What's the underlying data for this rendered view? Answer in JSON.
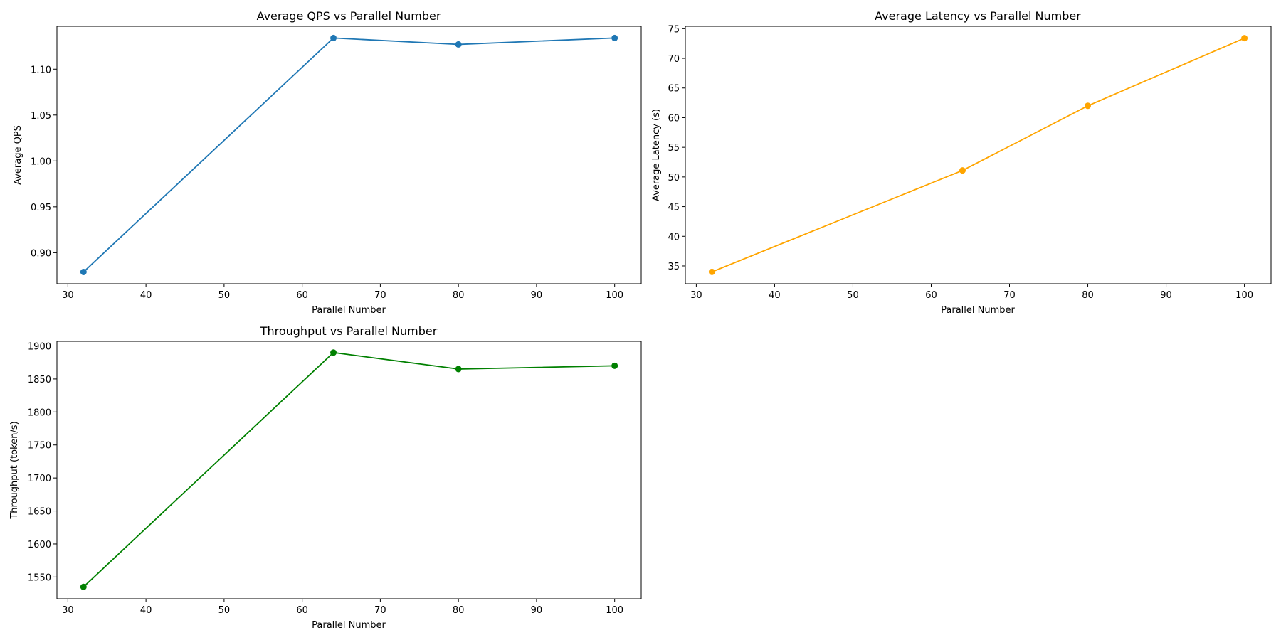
{
  "chart_data": [
    {
      "type": "line",
      "title": "Average QPS vs Parallel Number",
      "xlabel": "Parallel Number",
      "ylabel": "Average QPS",
      "x": [
        32,
        64,
        80,
        100
      ],
      "series": [
        {
          "values": [
            0.879,
            1.134,
            1.127,
            1.134
          ],
          "color": "#1f77b4",
          "marker": "circle"
        }
      ],
      "xlim": [
        28.6,
        103.4
      ],
      "ylim": [
        0.8662,
        1.1467
      ],
      "xticks": [
        30,
        40,
        50,
        60,
        70,
        80,
        90,
        100
      ],
      "yticks": [
        0.9,
        0.95,
        1.0,
        1.05,
        1.1
      ],
      "ytick_labels": [
        "0.90",
        "0.95",
        "1.00",
        "1.05",
        "1.10"
      ],
      "grid": false,
      "legend": "none"
    },
    {
      "type": "line",
      "title": "Average Latency vs Parallel Number",
      "xlabel": "Parallel Number",
      "ylabel": "Average Latency (s)",
      "x": [
        32,
        64,
        80,
        100
      ],
      "series": [
        {
          "values": [
            34.0,
            51.1,
            62.0,
            73.4
          ],
          "color": "#ffa500",
          "marker": "circle"
        }
      ],
      "xlim": [
        28.6,
        103.4
      ],
      "ylim": [
        32.0,
        75.4
      ],
      "xticks": [
        30,
        40,
        50,
        60,
        70,
        80,
        90,
        100
      ],
      "yticks": [
        35,
        40,
        45,
        50,
        55,
        60,
        65,
        70,
        75
      ],
      "ytick_labels": [
        "35",
        "40",
        "45",
        "50",
        "55",
        "60",
        "65",
        "70",
        "75"
      ],
      "grid": false,
      "legend": "none"
    },
    {
      "type": "line",
      "title": "Throughput vs Parallel Number",
      "xlabel": "Parallel Number",
      "ylabel": "Throughput (token/s)",
      "x": [
        32,
        64,
        80,
        100
      ],
      "series": [
        {
          "values": [
            1535,
            1890,
            1865,
            1870
          ],
          "color": "#008000",
          "marker": "circle"
        }
      ],
      "xlim": [
        28.6,
        103.4
      ],
      "ylim": [
        1517,
        1907
      ],
      "xticks": [
        30,
        40,
        50,
        60,
        70,
        80,
        90,
        100
      ],
      "yticks": [
        1550,
        1600,
        1650,
        1700,
        1750,
        1800,
        1850,
        1900
      ],
      "ytick_labels": [
        "1550",
        "1600",
        "1650",
        "1700",
        "1750",
        "1800",
        "1850",
        "1900"
      ],
      "grid": false,
      "legend": "none"
    }
  ]
}
